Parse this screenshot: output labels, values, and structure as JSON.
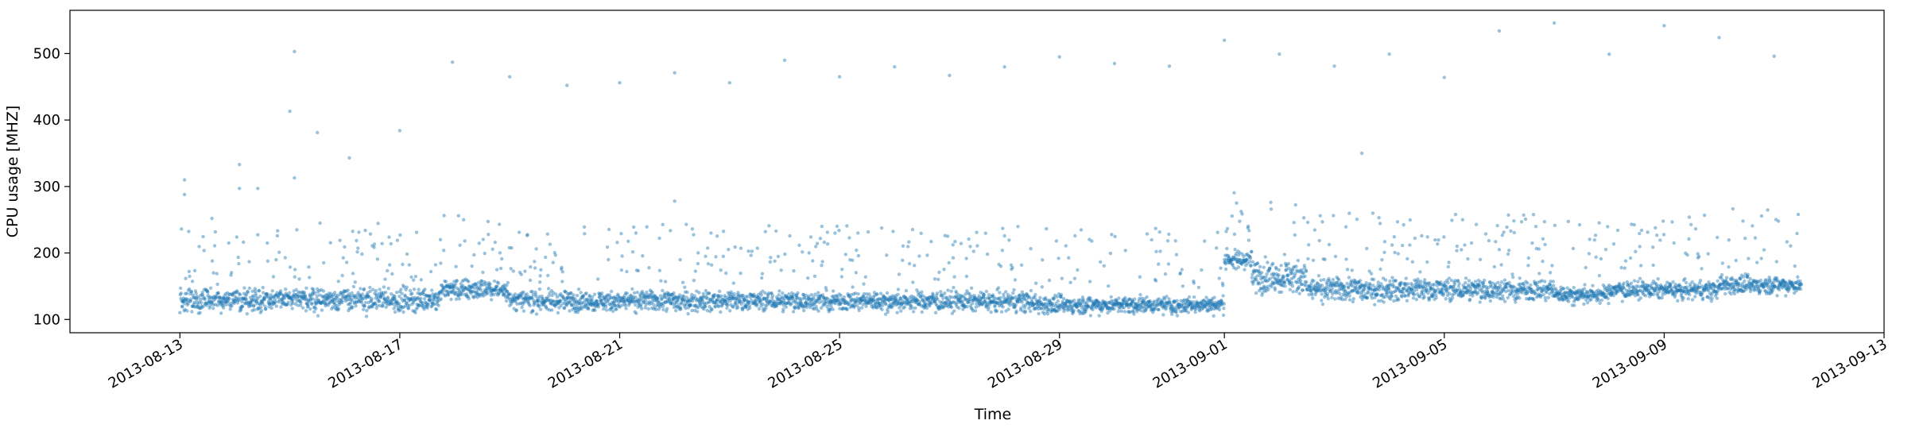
{
  "chart_data": {
    "type": "scatter",
    "title": "",
    "xlabel": "Time",
    "ylabel": "CPU usage [MHZ]",
    "xlim": [
      "2013-08-11T00:00:00",
      "2013-09-13T00:00:00"
    ],
    "ylim": [
      80,
      565
    ],
    "x_ticks": [
      "2013-08-13",
      "2013-08-17",
      "2013-08-21",
      "2013-08-25",
      "2013-08-29",
      "2013-09-01",
      "2013-09-05",
      "2013-09-09",
      "2013-09-13"
    ],
    "y_ticks": [
      100,
      200,
      300,
      400,
      500
    ],
    "grid": false,
    "color": "#1f77b4",
    "marker_opacity": 0.45,
    "x_start": "2013-08-13",
    "x_end": "2013-09-11",
    "outliers": [
      {
        "x": "2013-08-13T02:00",
        "y": 310
      },
      {
        "x": "2013-08-13T02:00",
        "y": 288
      },
      {
        "x": "2013-08-13T14:00",
        "y": 252
      },
      {
        "x": "2013-08-14T02:00",
        "y": 333
      },
      {
        "x": "2013-08-14T02:00",
        "y": 297
      },
      {
        "x": "2013-08-14T10:00",
        "y": 297
      },
      {
        "x": "2013-08-15T02:00",
        "y": 503
      },
      {
        "x": "2013-08-15T00:00",
        "y": 413
      },
      {
        "x": "2013-08-15T02:00",
        "y": 313
      },
      {
        "x": "2013-08-15T12:00",
        "y": 381
      },
      {
        "x": "2013-08-16T02:00",
        "y": 343
      },
      {
        "x": "2013-08-17T00:00",
        "y": 384
      },
      {
        "x": "2013-08-17T23:00",
        "y": 487
      },
      {
        "x": "2013-08-19T00:00",
        "y": 465
      },
      {
        "x": "2013-08-20T01:00",
        "y": 452
      },
      {
        "x": "2013-08-21T00:00",
        "y": 456
      },
      {
        "x": "2013-08-22T00:00",
        "y": 471
      },
      {
        "x": "2013-08-22T00:00",
        "y": 278
      },
      {
        "x": "2013-08-23T00:00",
        "y": 456
      },
      {
        "x": "2013-08-24T00:00",
        "y": 490
      },
      {
        "x": "2013-08-25T00:00",
        "y": 465
      },
      {
        "x": "2013-08-26T00:00",
        "y": 480
      },
      {
        "x": "2013-08-27T00:00",
        "y": 467
      },
      {
        "x": "2013-08-28T00:00",
        "y": 480
      },
      {
        "x": "2013-08-29T00:00",
        "y": 495
      },
      {
        "x": "2013-08-30T00:00",
        "y": 485
      },
      {
        "x": "2013-08-31T00:00",
        "y": 481
      },
      {
        "x": "2013-09-01T00:00",
        "y": 520
      },
      {
        "x": "2013-09-02T00:00",
        "y": 499
      },
      {
        "x": "2013-09-03T00:00",
        "y": 481
      },
      {
        "x": "2013-09-03T12:00",
        "y": 350
      },
      {
        "x": "2013-09-04T00:00",
        "y": 499
      },
      {
        "x": "2013-09-05T00:00",
        "y": 464
      },
      {
        "x": "2013-09-06T00:00",
        "y": 534
      },
      {
        "x": "2013-09-07T00:00",
        "y": 546
      },
      {
        "x": "2013-09-08T00:00",
        "y": 499
      },
      {
        "x": "2013-09-09T00:00",
        "y": 542
      },
      {
        "x": "2013-09-10T00:00",
        "y": 524
      },
      {
        "x": "2013-09-11T00:00",
        "y": 496
      }
    ],
    "baseline_segments": [
      {
        "from": "2013-08-13",
        "to": "2013-08-17T18:00",
        "center": 130,
        "spread": 14
      },
      {
        "from": "2013-08-17T18:00",
        "to": "2013-08-19T00:00",
        "center": 145,
        "spread": 12
      },
      {
        "from": "2013-08-19T00:00",
        "to": "2013-08-28T12:00",
        "center": 128,
        "spread": 12
      },
      {
        "from": "2013-08-28T12:00",
        "to": "2013-09-01T00:00",
        "center": 122,
        "spread": 10
      },
      {
        "from": "2013-09-01T00:00",
        "to": "2013-09-01T12:00",
        "center": 190,
        "spread": 10
      },
      {
        "from": "2013-09-01T12:00",
        "to": "2013-09-02T12:00",
        "center": 165,
        "spread": 20
      },
      {
        "from": "2013-09-02T12:00",
        "to": "2013-09-07T00:00",
        "center": 145,
        "spread": 14
      },
      {
        "from": "2013-09-07T00:00",
        "to": "2013-09-08T00:00",
        "center": 138,
        "spread": 10
      },
      {
        "from": "2013-09-08T00:00",
        "to": "2013-09-10T00:00",
        "center": 145,
        "spread": 10
      },
      {
        "from": "2013-09-10T00:00",
        "to": "2013-09-11T12:00",
        "center": 152,
        "spread": 10
      }
    ]
  }
}
